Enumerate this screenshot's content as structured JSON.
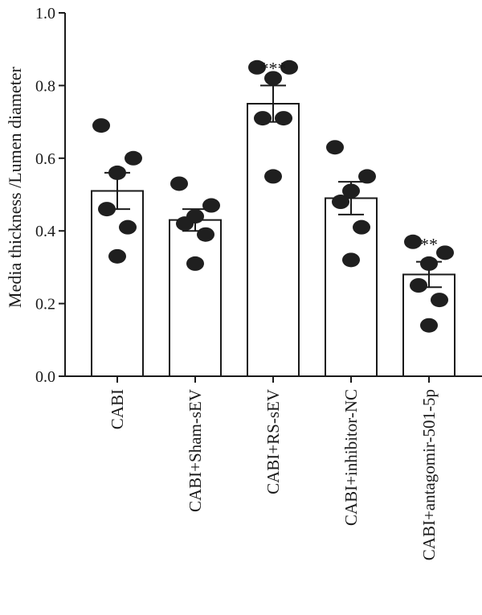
{
  "chart_data": {
    "type": "bar",
    "title": "",
    "xlabel": "",
    "ylabel": "Media thickness /Lumen diameter",
    "ylim": [
      0,
      1.0
    ],
    "yticks": [
      "0.0",
      "0.2",
      "0.4",
      "0.6",
      "0.8",
      "1.0"
    ],
    "grid": false,
    "categories": [
      "CABI",
      "CABI+Sham-sEV",
      "CABI+RS-sEV",
      "CABI+inhibitor-NC",
      "CABI+antagomir-501-5p"
    ],
    "values": [
      0.51,
      0.43,
      0.75,
      0.49,
      0.28
    ],
    "error": [
      0.05,
      0.03,
      0.05,
      0.045,
      0.035
    ],
    "significance": [
      "",
      "",
      "***",
      "",
      "**"
    ],
    "points": [
      [
        0.69,
        0.6,
        0.56,
        0.46,
        0.41,
        0.33
      ],
      [
        0.53,
        0.47,
        0.44,
        0.42,
        0.39,
        0.31
      ],
      [
        0.85,
        0.85,
        0.82,
        0.71,
        0.71,
        0.55
      ],
      [
        0.63,
        0.55,
        0.51,
        0.48,
        0.41,
        0.32
      ],
      [
        0.37,
        0.34,
        0.31,
        0.25,
        0.21,
        0.14
      ]
    ],
    "colors": {
      "bar_fill": "#ffffff",
      "outline": "#1a1a1a",
      "points": "#1f1f1f"
    }
  }
}
